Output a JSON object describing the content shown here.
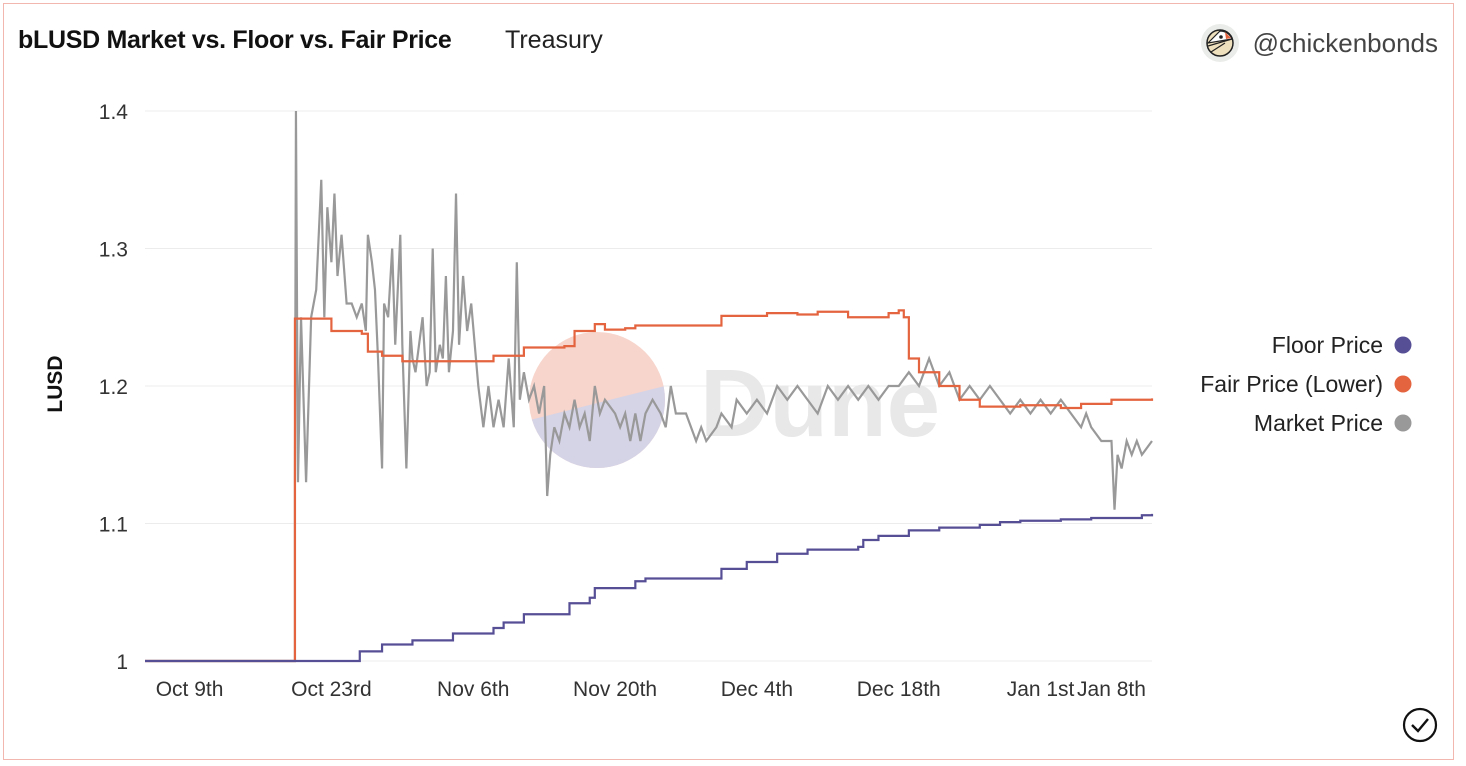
{
  "header": {
    "title": "bLUSD Market vs. Floor vs. Fair Price",
    "subtitle": "Treasury",
    "owner": "@chickenbonds"
  },
  "watermark": "Dune",
  "colors": {
    "floor": "#574f96",
    "fair": "#e4643f",
    "market": "#999999"
  },
  "chart_data": {
    "type": "line",
    "title": "bLUSD Market vs. Floor vs. Fair Price",
    "xlabel": "",
    "ylabel": "LUSD",
    "x_unit": "days since Oct 9th",
    "xlim": [
      -4.4,
      95
    ],
    "ylim": [
      1.0,
      1.4
    ],
    "yticks": [
      {
        "v": 1.0,
        "label": "1"
      },
      {
        "v": 1.1,
        "label": "1.1"
      },
      {
        "v": 1.2,
        "label": "1.2"
      },
      {
        "v": 1.3,
        "label": "1.3"
      },
      {
        "v": 1.4,
        "label": "1.4"
      }
    ],
    "xticks": [
      {
        "v": 0,
        "label": "Oct 9th"
      },
      {
        "v": 14,
        "label": "Oct 23rd"
      },
      {
        "v": 28,
        "label": "Nov 6th"
      },
      {
        "v": 42,
        "label": "Nov 20th"
      },
      {
        "v": 56,
        "label": "Dec 4th"
      },
      {
        "v": 70,
        "label": "Dec 18th"
      },
      {
        "v": 84,
        "label": "Jan 1st"
      },
      {
        "v": 91,
        "label": "Jan 8th"
      }
    ],
    "grid": true,
    "legend_position": "right",
    "series": [
      {
        "name": "Floor Price",
        "color": "#574f96",
        "points": [
          [
            -4.4,
            1.0
          ],
          [
            16.8,
            1.0
          ],
          [
            16.8,
            1.007
          ],
          [
            19,
            1.012
          ],
          [
            22,
            1.015
          ],
          [
            26,
            1.02
          ],
          [
            30,
            1.024
          ],
          [
            31,
            1.028
          ],
          [
            33,
            1.034
          ],
          [
            37,
            1.034
          ],
          [
            37.5,
            1.042
          ],
          [
            39.5,
            1.046
          ],
          [
            40,
            1.053
          ],
          [
            43,
            1.053
          ],
          [
            44,
            1.058
          ],
          [
            45,
            1.06
          ],
          [
            52,
            1.06
          ],
          [
            52.5,
            1.067
          ],
          [
            55,
            1.072
          ],
          [
            58,
            1.078
          ],
          [
            61,
            1.081
          ],
          [
            66,
            1.083
          ],
          [
            66.5,
            1.088
          ],
          [
            68,
            1.091
          ],
          [
            71,
            1.095
          ],
          [
            74,
            1.097
          ],
          [
            78,
            1.099
          ],
          [
            80,
            1.101
          ],
          [
            82,
            1.102
          ],
          [
            86,
            1.103
          ],
          [
            89,
            1.104
          ],
          [
            94,
            1.106
          ],
          [
            95,
            1.107
          ]
        ]
      },
      {
        "name": "Fair Price (Lower)",
        "color": "#e4643f",
        "points": [
          [
            -4.4,
            1.0
          ],
          [
            10.4,
            1.0
          ],
          [
            10.4,
            1.249
          ],
          [
            12,
            1.249
          ],
          [
            14,
            1.24
          ],
          [
            17,
            1.238
          ],
          [
            17.6,
            1.225
          ],
          [
            19,
            1.222
          ],
          [
            21,
            1.218
          ],
          [
            27,
            1.218
          ],
          [
            30,
            1.222
          ],
          [
            33,
            1.228
          ],
          [
            37,
            1.229
          ],
          [
            38,
            1.24
          ],
          [
            40,
            1.245
          ],
          [
            41,
            1.241
          ],
          [
            43,
            1.242
          ],
          [
            44,
            1.244
          ],
          [
            52,
            1.244
          ],
          [
            52.5,
            1.251
          ],
          [
            57,
            1.253
          ],
          [
            60,
            1.252
          ],
          [
            62,
            1.254
          ],
          [
            65,
            1.25
          ],
          [
            69,
            1.253
          ],
          [
            70,
            1.255
          ],
          [
            70.5,
            1.25
          ],
          [
            71,
            1.22
          ],
          [
            72,
            1.21
          ],
          [
            74,
            1.2
          ],
          [
            76,
            1.19
          ],
          [
            78,
            1.185
          ],
          [
            82,
            1.186
          ],
          [
            84,
            1.186
          ],
          [
            86,
            1.184
          ],
          [
            88,
            1.187
          ],
          [
            91,
            1.19
          ],
          [
            95,
            1.191
          ]
        ]
      },
      {
        "name": "Market Price",
        "color": "#999999",
        "points": [
          [
            -4.4,
            1.0
          ],
          [
            10.4,
            1.0
          ],
          [
            10.4,
            1.13
          ],
          [
            10.5,
            1.4
          ],
          [
            10.7,
            1.13
          ],
          [
            11,
            1.25
          ],
          [
            11.5,
            1.13
          ],
          [
            12,
            1.25
          ],
          [
            12.5,
            1.27
          ],
          [
            13,
            1.35
          ],
          [
            13.3,
            1.25
          ],
          [
            13.6,
            1.33
          ],
          [
            14,
            1.29
          ],
          [
            14.3,
            1.34
          ],
          [
            14.6,
            1.28
          ],
          [
            15,
            1.31
          ],
          [
            15.5,
            1.26
          ],
          [
            16,
            1.26
          ],
          [
            16.5,
            1.25
          ],
          [
            17,
            1.26
          ],
          [
            17.4,
            1.24
          ],
          [
            17.6,
            1.31
          ],
          [
            18,
            1.29
          ],
          [
            18.3,
            1.27
          ],
          [
            18.6,
            1.22
          ],
          [
            19,
            1.14
          ],
          [
            19.2,
            1.26
          ],
          [
            19.6,
            1.25
          ],
          [
            20,
            1.3
          ],
          [
            20.3,
            1.23
          ],
          [
            20.8,
            1.31
          ],
          [
            21,
            1.23
          ],
          [
            21.4,
            1.14
          ],
          [
            21.8,
            1.24
          ],
          [
            22,
            1.22
          ],
          [
            22.3,
            1.21
          ],
          [
            23,
            1.25
          ],
          [
            23.4,
            1.2
          ],
          [
            23.7,
            1.21
          ],
          [
            24,
            1.3
          ],
          [
            24.3,
            1.21
          ],
          [
            24.7,
            1.23
          ],
          [
            25,
            1.22
          ],
          [
            25.3,
            1.28
          ],
          [
            25.6,
            1.21
          ],
          [
            26,
            1.24
          ],
          [
            26.3,
            1.34
          ],
          [
            26.6,
            1.23
          ],
          [
            27,
            1.28
          ],
          [
            27.4,
            1.24
          ],
          [
            27.8,
            1.26
          ],
          [
            28.5,
            1.2
          ],
          [
            29,
            1.17
          ],
          [
            29.5,
            1.2
          ],
          [
            30,
            1.17
          ],
          [
            30.5,
            1.19
          ],
          [
            31,
            1.17
          ],
          [
            31.5,
            1.22
          ],
          [
            32,
            1.17
          ],
          [
            32.3,
            1.29
          ],
          [
            32.6,
            1.19
          ],
          [
            33,
            1.21
          ],
          [
            33.5,
            1.19
          ],
          [
            34,
            1.2
          ],
          [
            34.5,
            1.18
          ],
          [
            35,
            1.2
          ],
          [
            35.3,
            1.12
          ],
          [
            35.6,
            1.15
          ],
          [
            36,
            1.17
          ],
          [
            36.5,
            1.16
          ],
          [
            37,
            1.18
          ],
          [
            37.5,
            1.17
          ],
          [
            38,
            1.19
          ],
          [
            38.5,
            1.17
          ],
          [
            39,
            1.18
          ],
          [
            39.5,
            1.16
          ],
          [
            40,
            1.2
          ],
          [
            40.5,
            1.18
          ],
          [
            41,
            1.19
          ],
          [
            42,
            1.18
          ],
          [
            42.5,
            1.17
          ],
          [
            43,
            1.18
          ],
          [
            43.5,
            1.16
          ],
          [
            44,
            1.18
          ],
          [
            44.5,
            1.16
          ],
          [
            45,
            1.18
          ],
          [
            45.7,
            1.19
          ],
          [
            46.5,
            1.18
          ],
          [
            47,
            1.17
          ],
          [
            47.5,
            1.2
          ],
          [
            48,
            1.18
          ],
          [
            49,
            1.18
          ],
          [
            49.5,
            1.17
          ],
          [
            50,
            1.16
          ],
          [
            50.5,
            1.17
          ],
          [
            51,
            1.16
          ],
          [
            52,
            1.17
          ],
          [
            52.5,
            1.18
          ],
          [
            53.5,
            1.17
          ],
          [
            54,
            1.19
          ],
          [
            55,
            1.18
          ],
          [
            56,
            1.19
          ],
          [
            57,
            1.18
          ],
          [
            58,
            1.2
          ],
          [
            59,
            1.19
          ],
          [
            60,
            1.2
          ],
          [
            61,
            1.19
          ],
          [
            62,
            1.18
          ],
          [
            63,
            1.2
          ],
          [
            64,
            1.19
          ],
          [
            65,
            1.2
          ],
          [
            66,
            1.19
          ],
          [
            67,
            1.2
          ],
          [
            68,
            1.19
          ],
          [
            69,
            1.2
          ],
          [
            70,
            1.2
          ],
          [
            71,
            1.21
          ],
          [
            72,
            1.2
          ],
          [
            73,
            1.22
          ],
          [
            74,
            1.2
          ],
          [
            75,
            1.21
          ],
          [
            76,
            1.19
          ],
          [
            77,
            1.2
          ],
          [
            78,
            1.19
          ],
          [
            79,
            1.2
          ],
          [
            80,
            1.19
          ],
          [
            81,
            1.18
          ],
          [
            82,
            1.19
          ],
          [
            83,
            1.18
          ],
          [
            84,
            1.19
          ],
          [
            85,
            1.18
          ],
          [
            86,
            1.19
          ],
          [
            87,
            1.18
          ],
          [
            88,
            1.17
          ],
          [
            88.5,
            1.18
          ],
          [
            89,
            1.17
          ],
          [
            90,
            1.16
          ],
          [
            91,
            1.16
          ],
          [
            91.3,
            1.11
          ],
          [
            91.6,
            1.15
          ],
          [
            92,
            1.14
          ],
          [
            92.5,
            1.16
          ],
          [
            93,
            1.15
          ],
          [
            93.5,
            1.16
          ],
          [
            94,
            1.15
          ],
          [
            95,
            1.16
          ]
        ]
      }
    ]
  }
}
